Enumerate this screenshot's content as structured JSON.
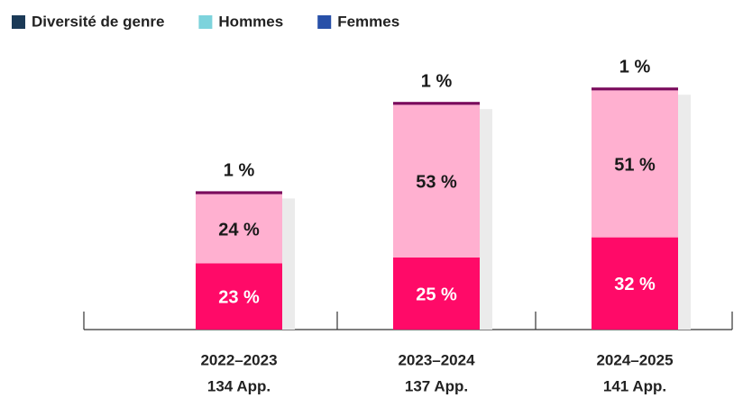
{
  "chart_data": {
    "type": "stacked-bar",
    "categories": [
      "2022–2023",
      "2023–2024",
      "2024–2025"
    ],
    "sublabels": [
      "134 App.",
      "137 App.",
      "141 App."
    ],
    "series": [
      {
        "name": "Femmes",
        "color": "#ff0a68",
        "legend_color": "#2850a8",
        "label_color": "#ffffff",
        "values": [
          23,
          25,
          32
        ],
        "value_labels": [
          "23 %",
          "25 %",
          "32 %"
        ]
      },
      {
        "name": "Hommes",
        "color": "#ffb0d0",
        "legend_color": "#7dd3dc",
        "label_color": "#1a1a1a",
        "values": [
          24,
          53,
          51
        ],
        "value_labels": [
          "24 %",
          "53 %",
          "51 %"
        ]
      },
      {
        "name": "Diversité de genre",
        "color": "#7a0a5c",
        "legend_color": "#1b3a57",
        "label_color": "#1a1a1a",
        "values": [
          1,
          1,
          1
        ],
        "value_labels": [
          "1 %",
          "1 %",
          "1 %"
        ]
      }
    ],
    "legend_order": [
      2,
      1,
      0
    ],
    "ylim": [
      0,
      100
    ]
  }
}
